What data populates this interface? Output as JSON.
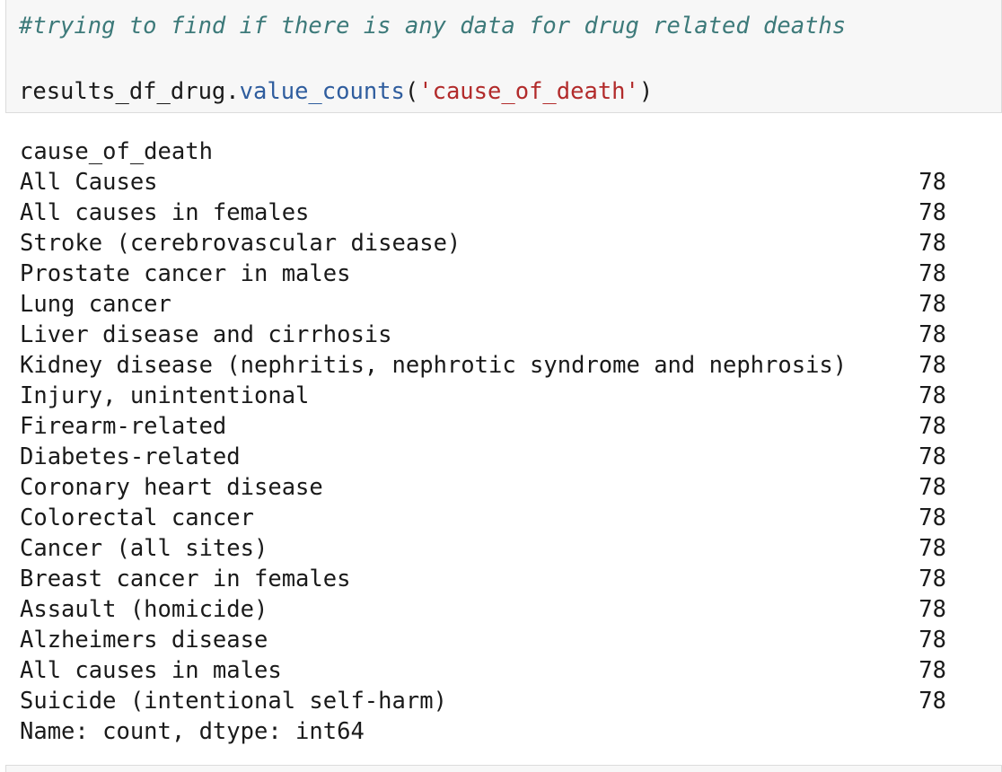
{
  "code_cell": {
    "comment": "#trying to find if there is any data for drug related deaths",
    "call": {
      "object": "results_df_drug",
      "dot": ".",
      "method": "value_counts",
      "open": "(",
      "argument": "'cause_of_death'",
      "close": ")"
    }
  },
  "output": {
    "index_name": "cause_of_death",
    "rows": [
      {
        "label": "All Causes",
        "count": "78"
      },
      {
        "label": "All causes in females",
        "count": "78"
      },
      {
        "label": "Stroke (cerebrovascular disease)",
        "count": "78"
      },
      {
        "label": "Prostate cancer in males",
        "count": "78"
      },
      {
        "label": "Lung cancer",
        "count": "78"
      },
      {
        "label": "Liver disease and cirrhosis",
        "count": "78"
      },
      {
        "label": "Kidney disease (nephritis, nephrotic syndrome and nephrosis)",
        "count": "78"
      },
      {
        "label": "Injury, unintentional",
        "count": "78"
      },
      {
        "label": "Firearm-related",
        "count": "78"
      },
      {
        "label": "Diabetes-related",
        "count": "78"
      },
      {
        "label": "Coronary heart disease",
        "count": "78"
      },
      {
        "label": "Colorectal cancer",
        "count": "78"
      },
      {
        "label": "Cancer (all sites)",
        "count": "78"
      },
      {
        "label": "Breast cancer in females",
        "count": "78"
      },
      {
        "label": "Assault (homicide)",
        "count": "78"
      },
      {
        "label": "Alzheimers disease",
        "count": "78"
      },
      {
        "label": "All causes in males",
        "count": "78"
      },
      {
        "label": "Suicide (intentional self-harm)",
        "count": "78"
      }
    ],
    "footer": "Name: count, dtype: int64"
  }
}
